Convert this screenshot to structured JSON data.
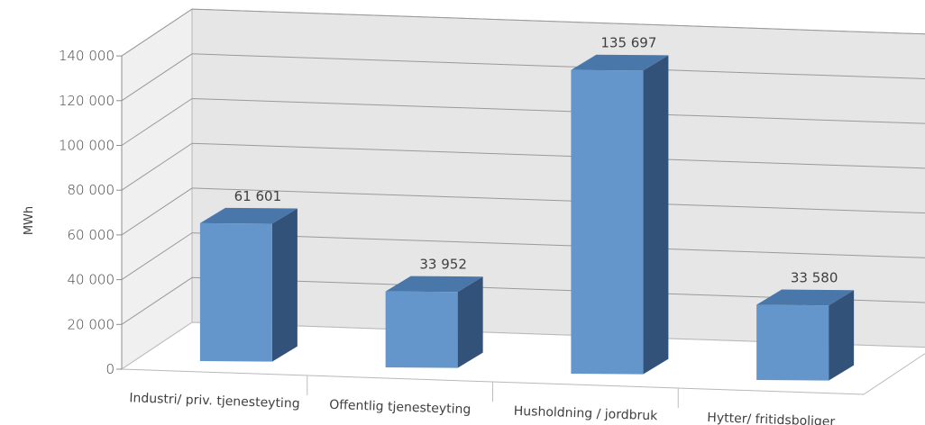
{
  "chart_data": {
    "type": "bar",
    "three_d": true,
    "ylabel": "MWh",
    "ylim": [
      0,
      140000
    ],
    "yticks": [
      "0",
      "20 000",
      "40 000",
      "60 000",
      "80 000",
      "100 000",
      "120 000",
      "140 000"
    ],
    "categories": [
      "Industri/ priv. tjenesteyting",
      "Offentlig tjenesteyting",
      "Husholdning / jordbruk",
      "Hytter/ fritidsboliger"
    ],
    "values": [
      61601,
      33952,
      135697,
      33580
    ],
    "data_labels": [
      "61 601",
      "33 952",
      "135 697",
      "33 580"
    ],
    "grid": true,
    "legend": "none",
    "colors": {
      "bar_front": "#6496CB",
      "bar_top": "#4A77AA",
      "bar_side": "#33527A",
      "back_wall": "#E6E6E6",
      "side_wall": "#F0F0F0",
      "grid": "#9A9A9A"
    }
  }
}
